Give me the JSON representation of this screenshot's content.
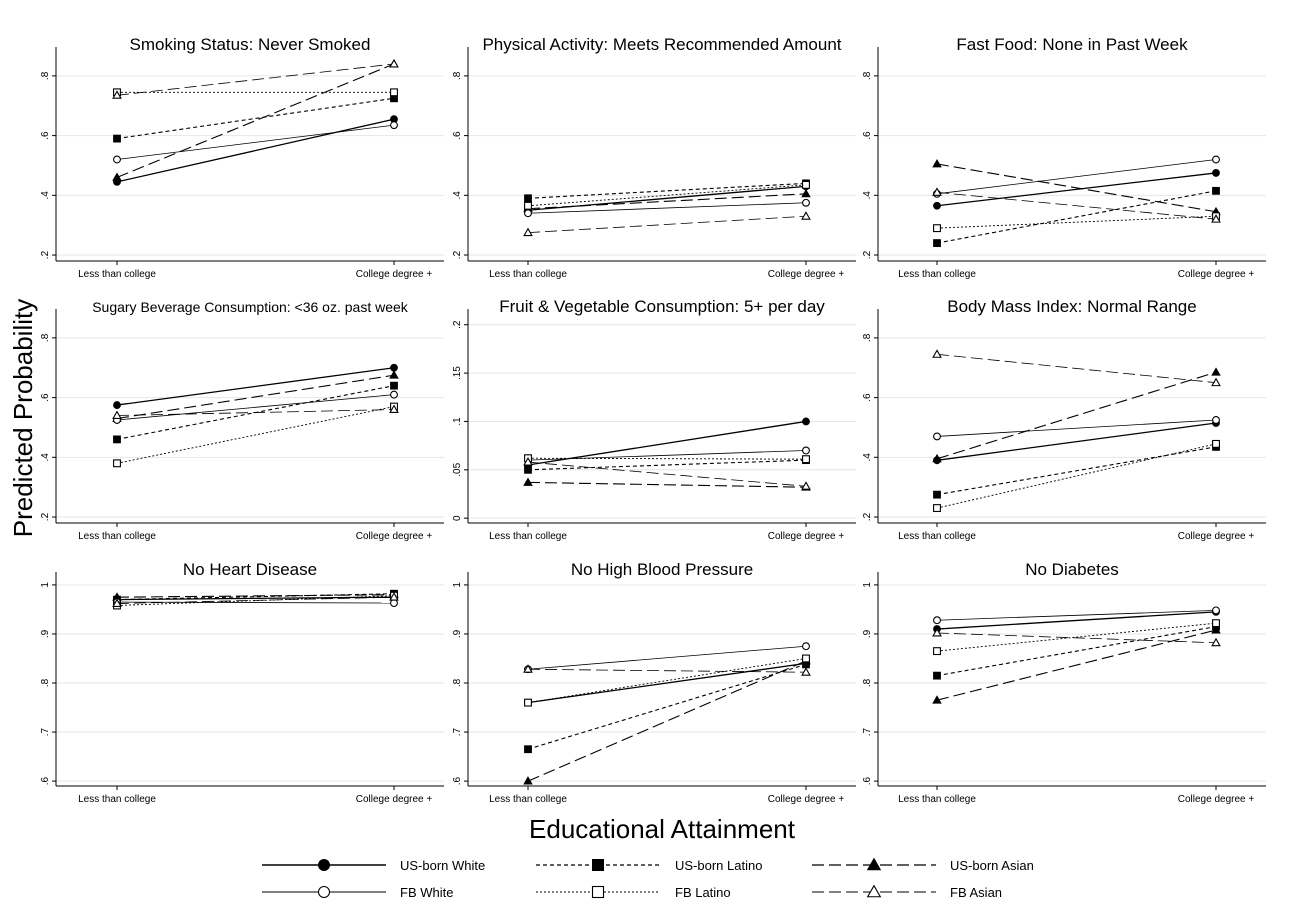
{
  "figure": {
    "ylabel": "Predicted Probability",
    "xlabel": "Educational Attainment"
  },
  "legend": [
    {
      "name": "US-born White",
      "marker": "circle",
      "filled": true,
      "dash": "solid"
    },
    {
      "name": "US-born Latino",
      "marker": "square",
      "filled": true,
      "dash": "short-dash"
    },
    {
      "name": "US-born Asian",
      "marker": "triangle",
      "filled": true,
      "dash": "long-dash"
    },
    {
      "name": "FB White",
      "marker": "circle",
      "filled": false,
      "dash": "solid-thin"
    },
    {
      "name": "FB Latino",
      "marker": "square",
      "filled": false,
      "dash": "dotted"
    },
    {
      "name": "FB Asian",
      "marker": "triangle",
      "filled": false,
      "dash": "long-dash-thin"
    }
  ],
  "chart_data": [
    {
      "type": "line",
      "title": "Smoking Status: Never Smoked",
      "categories": [
        "Less than college",
        "College degree +"
      ],
      "ylim": [
        0.18,
        0.87
      ],
      "yticks": [
        0.2,
        0.4,
        0.6,
        0.8
      ],
      "ytick_labels": [
        ".2",
        ".4",
        ".6",
        ".8"
      ],
      "series": [
        {
          "name": "US-born White",
          "values": [
            0.445,
            0.655
          ]
        },
        {
          "name": "US-born Latino",
          "values": [
            0.59,
            0.725
          ]
        },
        {
          "name": "US-born Asian",
          "values": [
            0.46,
            0.84
          ]
        },
        {
          "name": "FB White",
          "values": [
            0.52,
            0.635
          ]
        },
        {
          "name": "FB Latino",
          "values": [
            0.745,
            0.745
          ]
        },
        {
          "name": "FB Asian",
          "values": [
            0.735,
            0.84
          ]
        }
      ]
    },
    {
      "type": "line",
      "title": "Physical Activity: Meets Recommended Amount",
      "categories": [
        "Less than college",
        "College degree +"
      ],
      "ylim": [
        0.18,
        0.87
      ],
      "yticks": [
        0.2,
        0.4,
        0.6,
        0.8
      ],
      "ytick_labels": [
        ".2",
        ".4",
        ".6",
        ".8"
      ],
      "series": [
        {
          "name": "US-born White",
          "values": [
            0.35,
            0.43
          ]
        },
        {
          "name": "US-born Latino",
          "values": [
            0.39,
            0.44
          ]
        },
        {
          "name": "US-born Asian",
          "values": [
            0.355,
            0.405
          ]
        },
        {
          "name": "FB White",
          "values": [
            0.34,
            0.375
          ]
        },
        {
          "name": "FB Latino",
          "values": [
            0.365,
            0.435
          ]
        },
        {
          "name": "FB Asian",
          "values": [
            0.275,
            0.33
          ]
        }
      ]
    },
    {
      "type": "line",
      "title": "Fast Food: None in Past Week",
      "categories": [
        "Less than college",
        "College degree +"
      ],
      "ylim": [
        0.18,
        0.87
      ],
      "yticks": [
        0.2,
        0.4,
        0.6,
        0.8
      ],
      "ytick_labels": [
        ".2",
        ".4",
        ".6",
        ".8"
      ],
      "series": [
        {
          "name": "US-born White",
          "values": [
            0.365,
            0.475
          ]
        },
        {
          "name": "US-born Latino",
          "values": [
            0.24,
            0.415
          ]
        },
        {
          "name": "US-born Asian",
          "values": [
            0.505,
            0.345
          ]
        },
        {
          "name": "FB White",
          "values": [
            0.405,
            0.52
          ]
        },
        {
          "name": "FB Latino",
          "values": [
            0.29,
            0.33
          ]
        },
        {
          "name": "FB Asian",
          "values": [
            0.41,
            0.32
          ]
        }
      ]
    },
    {
      "type": "line",
      "title": "Sugary Beverage Consumption: <36 oz. past week",
      "categories": [
        "Less than college",
        "College degree +"
      ],
      "ylim": [
        0.18,
        0.87
      ],
      "yticks": [
        0.2,
        0.4,
        0.6,
        0.8
      ],
      "ytick_labels": [
        ".2",
        ".4",
        ".6",
        ".8"
      ],
      "series": [
        {
          "name": "US-born White",
          "values": [
            0.575,
            0.7
          ]
        },
        {
          "name": "US-born Latino",
          "values": [
            0.46,
            0.64
          ]
        },
        {
          "name": "US-born Asian",
          "values": [
            0.53,
            0.675
          ]
        },
        {
          "name": "FB White",
          "values": [
            0.525,
            0.61
          ]
        },
        {
          "name": "FB Latino",
          "values": [
            0.38,
            0.57
          ]
        },
        {
          "name": "FB Asian",
          "values": [
            0.54,
            0.56
          ]
        }
      ]
    },
    {
      "type": "line",
      "title": "Fruit & Vegetable Consumption: 5+ per day",
      "categories": [
        "Less than college",
        "College degree +"
      ],
      "ylim": [
        -0.005,
        0.208
      ],
      "yticks": [
        0,
        0.05,
        0.1,
        0.15,
        0.2
      ],
      "ytick_labels": [
        "0",
        ".05",
        ".1",
        ".15",
        ".2"
      ],
      "series": [
        {
          "name": "US-born White",
          "values": [
            0.055,
            0.1
          ]
        },
        {
          "name": "US-born Latino",
          "values": [
            0.05,
            0.06
          ]
        },
        {
          "name": "US-born Asian",
          "values": [
            0.037,
            0.032
          ]
        },
        {
          "name": "FB White",
          "values": [
            0.06,
            0.07
          ]
        },
        {
          "name": "FB Latino",
          "values": [
            0.062,
            0.061
          ]
        },
        {
          "name": "FB Asian",
          "values": [
            0.058,
            0.033
          ]
        }
      ]
    },
    {
      "type": "line",
      "title": "Body Mass Index: Normal Range",
      "categories": [
        "Less than college",
        "College degree +"
      ],
      "ylim": [
        0.18,
        0.87
      ],
      "yticks": [
        0.2,
        0.4,
        0.6,
        0.8
      ],
      "ytick_labels": [
        ".2",
        ".4",
        ".6",
        ".8"
      ],
      "series": [
        {
          "name": "US-born White",
          "values": [
            0.39,
            0.515
          ]
        },
        {
          "name": "US-born Latino",
          "values": [
            0.275,
            0.435
          ]
        },
        {
          "name": "US-born Asian",
          "values": [
            0.395,
            0.685
          ]
        },
        {
          "name": "FB White",
          "values": [
            0.47,
            0.525
          ]
        },
        {
          "name": "FB Latino",
          "values": [
            0.23,
            0.445
          ]
        },
        {
          "name": "FB Asian",
          "values": [
            0.745,
            0.65
          ]
        }
      ]
    },
    {
      "type": "line",
      "title": "No Heart Disease",
      "categories": [
        "Less than college",
        "College degree +"
      ],
      "ylim": [
        0.59,
        1.01
      ],
      "yticks": [
        0.6,
        0.7,
        0.8,
        0.9,
        1.0
      ],
      "ytick_labels": [
        ".6",
        ".7",
        ".8",
        ".9",
        "1"
      ],
      "series": [
        {
          "name": "US-born White",
          "values": [
            0.97,
            0.975
          ]
        },
        {
          "name": "US-born Latino",
          "values": [
            0.97,
            0.982
          ]
        },
        {
          "name": "US-born Asian",
          "values": [
            0.975,
            0.98
          ]
        },
        {
          "name": "FB White",
          "values": [
            0.965,
            0.963
          ]
        },
        {
          "name": "FB Latino",
          "values": [
            0.958,
            0.978
          ]
        },
        {
          "name": "FB Asian",
          "values": [
            0.962,
            0.975
          ]
        }
      ]
    },
    {
      "type": "line",
      "title": "No High Blood Pressure",
      "categories": [
        "Less than college",
        "College degree +"
      ],
      "ylim": [
        0.59,
        1.01
      ],
      "yticks": [
        0.6,
        0.7,
        0.8,
        0.9,
        1.0
      ],
      "ytick_labels": [
        ".6",
        ".7",
        ".8",
        ".9",
        "1"
      ],
      "series": [
        {
          "name": "US-born White",
          "values": [
            0.76,
            0.84
          ]
        },
        {
          "name": "US-born Latino",
          "values": [
            0.665,
            0.838
          ]
        },
        {
          "name": "US-born Asian",
          "values": [
            0.6,
            0.845
          ]
        },
        {
          "name": "FB White",
          "values": [
            0.828,
            0.875
          ]
        },
        {
          "name": "FB Latino",
          "values": [
            0.76,
            0.85
          ]
        },
        {
          "name": "FB Asian",
          "values": [
            0.828,
            0.822
          ]
        }
      ]
    },
    {
      "type": "line",
      "title": "No Diabetes",
      "categories": [
        "Less than college",
        "College degree +"
      ],
      "ylim": [
        0.59,
        1.01
      ],
      "yticks": [
        0.6,
        0.7,
        0.8,
        0.9,
        1.0
      ],
      "ytick_labels": [
        ".6",
        ".7",
        ".8",
        ".9",
        "1"
      ],
      "series": [
        {
          "name": "US-born White",
          "values": [
            0.91,
            0.945
          ]
        },
        {
          "name": "US-born Latino",
          "values": [
            0.815,
            0.915
          ]
        },
        {
          "name": "US-born Asian",
          "values": [
            0.765,
            0.908
          ]
        },
        {
          "name": "FB White",
          "values": [
            0.928,
            0.948
          ]
        },
        {
          "name": "FB Latino",
          "values": [
            0.865,
            0.922
          ]
        },
        {
          "name": "FB Asian",
          "values": [
            0.902,
            0.882
          ]
        }
      ]
    }
  ]
}
